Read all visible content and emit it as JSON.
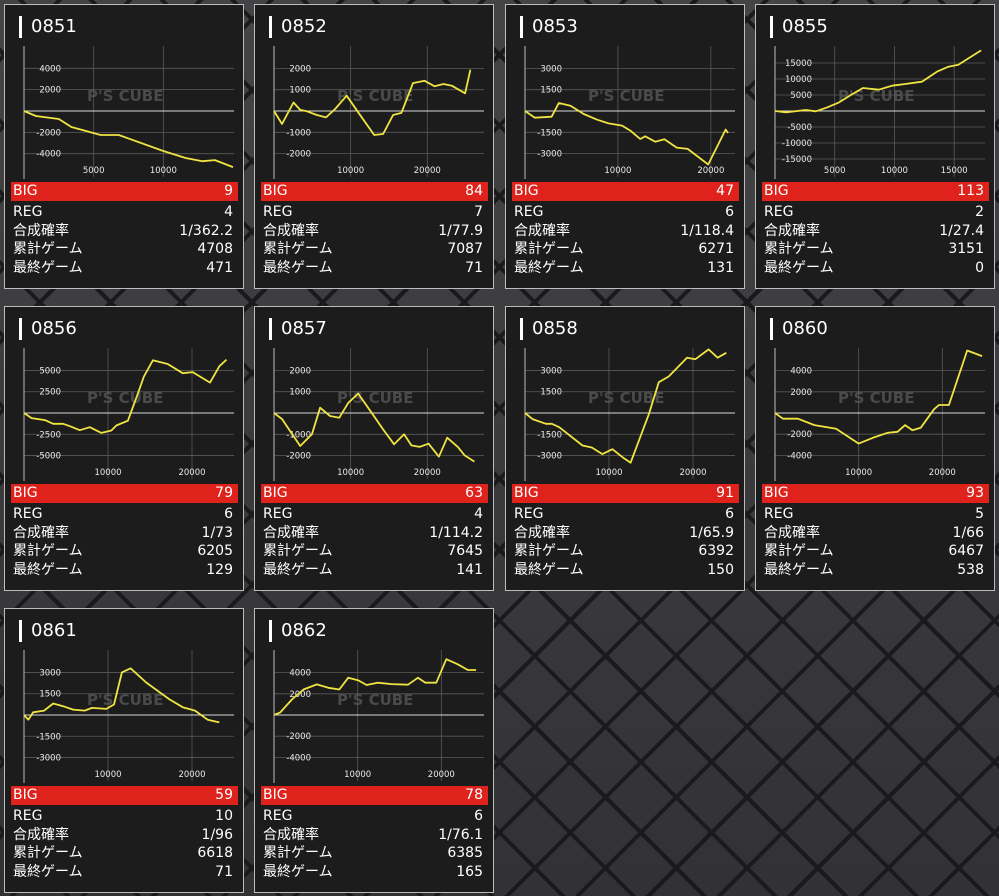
{
  "labels": {
    "big": "BIG",
    "reg": "REG",
    "prob": "合成確率",
    "total": "累計ゲーム",
    "last": "最終ゲーム"
  },
  "watermark": "P'S CUBE",
  "colors": {
    "line": "#f0e442",
    "big_bar": "#e0221c",
    "card_bg": "#1c1c1c"
  },
  "machines": [
    {
      "id": "0851",
      "big": "9",
      "reg": "4",
      "prob": "1/362.2",
      "total": "4708",
      "last": "471",
      "chart": {
        "ylim": 5900,
        "xmax": 15070,
        "yticks": [
          4000,
          2000,
          -2000,
          -4000
        ],
        "xticks": [
          5000,
          10000
        ],
        "points": [
          [
            0,
            0
          ],
          [
            850,
            -470
          ],
          [
            2500,
            -750
          ],
          [
            3400,
            -1500
          ],
          [
            5500,
            -2250
          ],
          [
            6800,
            -2250
          ],
          [
            10000,
            -3750
          ],
          [
            11600,
            -4400
          ],
          [
            12800,
            -4700
          ],
          [
            13700,
            -4600
          ],
          [
            15000,
            -5250
          ]
        ]
      }
    },
    {
      "id": "0852",
      "big": "84",
      "reg": "7",
      "prob": "1/77.9",
      "total": "7087",
      "last": "71",
      "chart": {
        "ylim": 2958,
        "xmax": 27400,
        "yticks": [
          2000,
          1000,
          -1000,
          -2000
        ],
        "xticks": [
          10000,
          20000
        ],
        "points": [
          [
            0,
            0
          ],
          [
            1040,
            -610
          ],
          [
            2550,
            400
          ],
          [
            3420,
            50
          ],
          [
            4290,
            -15
          ],
          [
            5580,
            -190
          ],
          [
            6790,
            -300
          ],
          [
            7960,
            90
          ],
          [
            9480,
            720
          ],
          [
            10990,
            -60
          ],
          [
            13070,
            -1125
          ],
          [
            14240,
            -1080
          ],
          [
            15540,
            -190
          ],
          [
            16620,
            -90
          ],
          [
            18140,
            1310
          ],
          [
            19650,
            1420
          ],
          [
            20950,
            1160
          ],
          [
            22120,
            1270
          ],
          [
            23200,
            1190
          ],
          [
            24940,
            830
          ],
          [
            25620,
            1940
          ]
        ]
      }
    },
    {
      "id": "0853",
      "big": "47",
      "reg": "6",
      "prob": "1/118.4",
      "total": "6271",
      "last": "131",
      "chart": {
        "ylim": 4437,
        "xmax": 22600,
        "yticks": [
          3000,
          1500,
          -1500,
          -3000
        ],
        "xticks": [
          10000,
          20000
        ],
        "points": [
          [
            0,
            0
          ],
          [
            1070,
            -470
          ],
          [
            2860,
            -400
          ],
          [
            3640,
            560
          ],
          [
            4900,
            375
          ],
          [
            6320,
            -210
          ],
          [
            7760,
            -610
          ],
          [
            9000,
            -870
          ],
          [
            10440,
            -1030
          ],
          [
            11330,
            -1380
          ],
          [
            12400,
            -1970
          ],
          [
            12940,
            -1780
          ],
          [
            14010,
            -2160
          ],
          [
            15000,
            -1990
          ],
          [
            16330,
            -2580
          ],
          [
            17510,
            -2670
          ],
          [
            19720,
            -3770
          ],
          [
            21590,
            -1310
          ],
          [
            21860,
            -1550
          ]
        ]
      }
    },
    {
      "id": "0855",
      "big": "113",
      "reg": "2",
      "prob": "1/27.4",
      "total": "3151",
      "last": "0",
      "chart": {
        "ylim": 19700,
        "xmax": 17580,
        "yticks": [
          15000,
          10000,
          5000,
          -5000,
          -10000,
          -15000
        ],
        "xticks": [
          5000,
          10000,
          15000
        ],
        "points": [
          [
            0,
            0
          ],
          [
            920,
            -420
          ],
          [
            2580,
            310
          ],
          [
            3420,
            -100
          ],
          [
            4390,
            1150
          ],
          [
            5360,
            2700
          ],
          [
            6470,
            5300
          ],
          [
            7360,
            7200
          ],
          [
            8690,
            6670
          ],
          [
            9800,
            7900
          ],
          [
            10910,
            8440
          ],
          [
            12300,
            9170
          ],
          [
            13550,
            12300
          ],
          [
            14520,
            13850
          ],
          [
            15350,
            14480
          ],
          [
            16190,
            16460
          ],
          [
            17250,
            18960
          ]
        ]
      }
    },
    {
      "id": "0856",
      "big": "79",
      "reg": "6",
      "prob": "1/73",
      "total": "6205",
      "last": "129",
      "chart": {
        "ylim": 7400,
        "xmax": 25000,
        "yticks": [
          5000,
          2500,
          -2500,
          -5000
        ],
        "xticks": [
          10000,
          20000
        ],
        "points": [
          [
            0,
            0
          ],
          [
            910,
            -600
          ],
          [
            2490,
            -830
          ],
          [
            3480,
            -1270
          ],
          [
            4660,
            -1270
          ],
          [
            5460,
            -1550
          ],
          [
            6640,
            -2020
          ],
          [
            7830,
            -1670
          ],
          [
            9210,
            -2340
          ],
          [
            10400,
            -2060
          ],
          [
            10990,
            -1470
          ],
          [
            12370,
            -910
          ],
          [
            13560,
            2300
          ],
          [
            14270,
            4290
          ],
          [
            15340,
            6190
          ],
          [
            17110,
            5750
          ],
          [
            18890,
            4680
          ],
          [
            20080,
            4800
          ],
          [
            22140,
            3570
          ],
          [
            23250,
            5480
          ],
          [
            24110,
            6270
          ]
        ]
      }
    },
    {
      "id": "0857",
      "big": "63",
      "reg": "4",
      "prob": "1/114.2",
      "total": "7645",
      "last": "141",
      "chart": {
        "ylim": 2958,
        "xmax": 27400,
        "yticks": [
          2000,
          1000,
          -1000,
          -2000
        ],
        "xticks": [
          10000,
          20000
        ],
        "points": [
          [
            0,
            0
          ],
          [
            1040,
            -280
          ],
          [
            3420,
            -1550
          ],
          [
            4940,
            -1000
          ],
          [
            6010,
            250
          ],
          [
            7310,
            -140
          ],
          [
            8520,
            -220
          ],
          [
            9690,
            480
          ],
          [
            10990,
            910
          ],
          [
            12730,
            15
          ],
          [
            14240,
            -770
          ],
          [
            15670,
            -1470
          ],
          [
            16970,
            -1000
          ],
          [
            17930,
            -1520
          ],
          [
            19000,
            -1590
          ],
          [
            20170,
            -1440
          ],
          [
            21510,
            -2050
          ],
          [
            22600,
            -1160
          ],
          [
            23980,
            -1590
          ],
          [
            24850,
            -1980
          ],
          [
            26150,
            -2280
          ]
        ]
      }
    },
    {
      "id": "0858",
      "big": "91",
      "reg": "6",
      "prob": "1/65.9",
      "total": "6392",
      "last": "150",
      "chart": {
        "ylim": 4440,
        "xmax": 25000,
        "yticks": [
          3000,
          1500,
          -1500,
          -3000
        ],
        "xticks": [
          10000,
          20000
        ],
        "points": [
          [
            0,
            0
          ],
          [
            910,
            -430
          ],
          [
            2490,
            -760
          ],
          [
            3200,
            -760
          ],
          [
            4070,
            -1000
          ],
          [
            6840,
            -2290
          ],
          [
            7950,
            -2430
          ],
          [
            9210,
            -2900
          ],
          [
            10400,
            -2550
          ],
          [
            11780,
            -3190
          ],
          [
            12570,
            -3500
          ],
          [
            14740,
            -95
          ],
          [
            15930,
            2170
          ],
          [
            17110,
            2570
          ],
          [
            19290,
            3900
          ],
          [
            20280,
            3790
          ],
          [
            21860,
            4480
          ],
          [
            22930,
            3900
          ],
          [
            23960,
            4240
          ]
        ]
      }
    },
    {
      "id": "0860",
      "big": "93",
      "reg": "5",
      "prob": "1/66",
      "total": "6467",
      "last": "538",
      "chart": {
        "ylim": 5950,
        "xmax": 25100,
        "yticks": [
          4000,
          2000,
          -2000,
          -4000
        ],
        "xticks": [
          10000,
          20000
        ],
        "points": [
          [
            0,
            0
          ],
          [
            950,
            -540
          ],
          [
            2740,
            -540
          ],
          [
            4710,
            -1140
          ],
          [
            7300,
            -1490
          ],
          [
            10000,
            -2890
          ],
          [
            11660,
            -2350
          ],
          [
            13450,
            -1870
          ],
          [
            14640,
            -1780
          ],
          [
            15550,
            -1140
          ],
          [
            16420,
            -1620
          ],
          [
            17410,
            -1400
          ],
          [
            19000,
            350
          ],
          [
            19590,
            760
          ],
          [
            20780,
            760
          ],
          [
            22970,
            5900
          ],
          [
            24750,
            5370
          ]
        ]
      }
    },
    {
      "id": "0861",
      "big": "59",
      "reg": "10",
      "prob": "1/96",
      "total": "6618",
      "last": "71",
      "chart": {
        "ylim": 4440,
        "xmax": 25000,
        "yticks": [
          3000,
          1500,
          -1500,
          -3000
        ],
        "xticks": [
          10000,
          20000
        ],
        "points": [
          [
            0,
            0
          ],
          [
            510,
            -330
          ],
          [
            1100,
            190
          ],
          [
            2410,
            310
          ],
          [
            3480,
            810
          ],
          [
            4660,
            620
          ],
          [
            5850,
            380
          ],
          [
            7230,
            310
          ],
          [
            8100,
            500
          ],
          [
            9800,
            430
          ],
          [
            10710,
            740
          ],
          [
            11660,
            3000
          ],
          [
            12690,
            3290
          ],
          [
            14550,
            2290
          ],
          [
            17320,
            1100
          ],
          [
            18890,
            550
          ],
          [
            20360,
            310
          ],
          [
            21860,
            -330
          ],
          [
            23250,
            -520
          ]
        ]
      }
    },
    {
      "id": "0862",
      "big": "78",
      "reg": "6",
      "prob": "1/76.1",
      "total": "6385",
      "last": "165",
      "chart": {
        "ylim": 5950,
        "xmax": 25100,
        "yticks": [
          4000,
          2000,
          -2000,
          -4000
        ],
        "xticks": [
          10000,
          20000
        ],
        "points": [
          [
            0,
            0
          ],
          [
            750,
            250
          ],
          [
            2140,
            1460
          ],
          [
            3520,
            2410
          ],
          [
            5120,
            2890
          ],
          [
            6500,
            2570
          ],
          [
            7810,
            2410
          ],
          [
            8880,
            3520
          ],
          [
            10070,
            3270
          ],
          [
            11070,
            2830
          ],
          [
            12380,
            3050
          ],
          [
            14040,
            2920
          ],
          [
            16020,
            2860
          ],
          [
            17210,
            3520
          ],
          [
            18090,
            3050
          ],
          [
            19400,
            3050
          ],
          [
            20590,
            5270
          ],
          [
            21970,
            4790
          ],
          [
            23160,
            4250
          ],
          [
            24160,
            4250
          ]
        ]
      }
    }
  ]
}
